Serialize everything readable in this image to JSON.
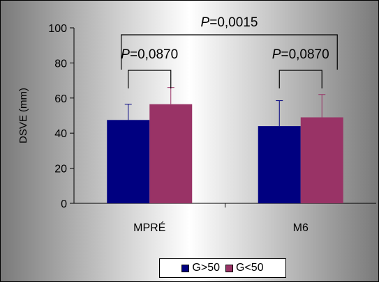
{
  "chart_data": {
    "type": "bar",
    "title": "",
    "xlabel": "",
    "ylabel": "DSVE (mm)",
    "ylim": [
      0,
      100
    ],
    "yticks": [
      0,
      20,
      40,
      60,
      80,
      100
    ],
    "grid": false,
    "legend_position": "bottom",
    "categories": [
      "MPRÉ",
      "M6"
    ],
    "series": [
      {
        "name": "G>50",
        "color": "#000080",
        "values": [
          47.5,
          44
        ],
        "errors": [
          9,
          14.5
        ]
      },
      {
        "name": "G<50",
        "color": "#993366",
        "values": [
          56.5,
          49
        ],
        "errors": [
          9.5,
          13
        ]
      }
    ],
    "annotations": {
      "overall": {
        "text_italic": "P",
        "text_value": "=0,0015"
      },
      "groups": [
        {
          "text_italic": "P",
          "text_value": "=0,0870"
        },
        {
          "text_italic": "P",
          "text_value": "=0,0870"
        }
      ]
    }
  }
}
